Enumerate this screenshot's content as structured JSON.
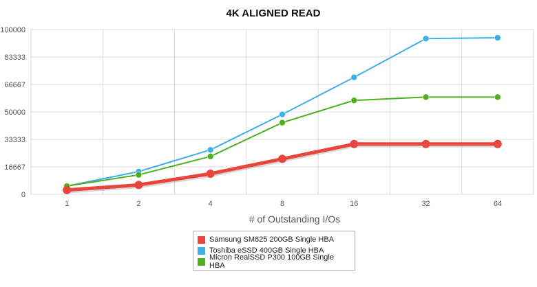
{
  "chart_data": {
    "type": "line",
    "title": "4K ALIGNED READ",
    "xlabel": "# of Outstanding I/Os",
    "ylabel": "",
    "categories": [
      "1",
      "2",
      "4",
      "8",
      "16",
      "32",
      "64"
    ],
    "yticks": [
      "0",
      "16667",
      "33333",
      "50000",
      "66667",
      "83333",
      "100000"
    ],
    "ylim": [
      0,
      100000
    ],
    "grid": true,
    "legend_position": "bottom",
    "series": [
      {
        "name": "Samsung SM825 200GB Single HBA",
        "color": "#e8453c",
        "values": [
          2600,
          5700,
          12500,
          21500,
          30500,
          30500,
          30500
        ]
      },
      {
        "name": "Toshiba eSSD 400GB Single HBA",
        "color": "#3daee9",
        "values": [
          5000,
          13800,
          27000,
          48500,
          71000,
          94500,
          95000
        ]
      },
      {
        "name": "Micron RealSSD P300 100GB Single HBA",
        "color": "#4caf1e",
        "values": [
          5000,
          11800,
          23000,
          43500,
          57000,
          59000,
          59000
        ]
      }
    ]
  }
}
